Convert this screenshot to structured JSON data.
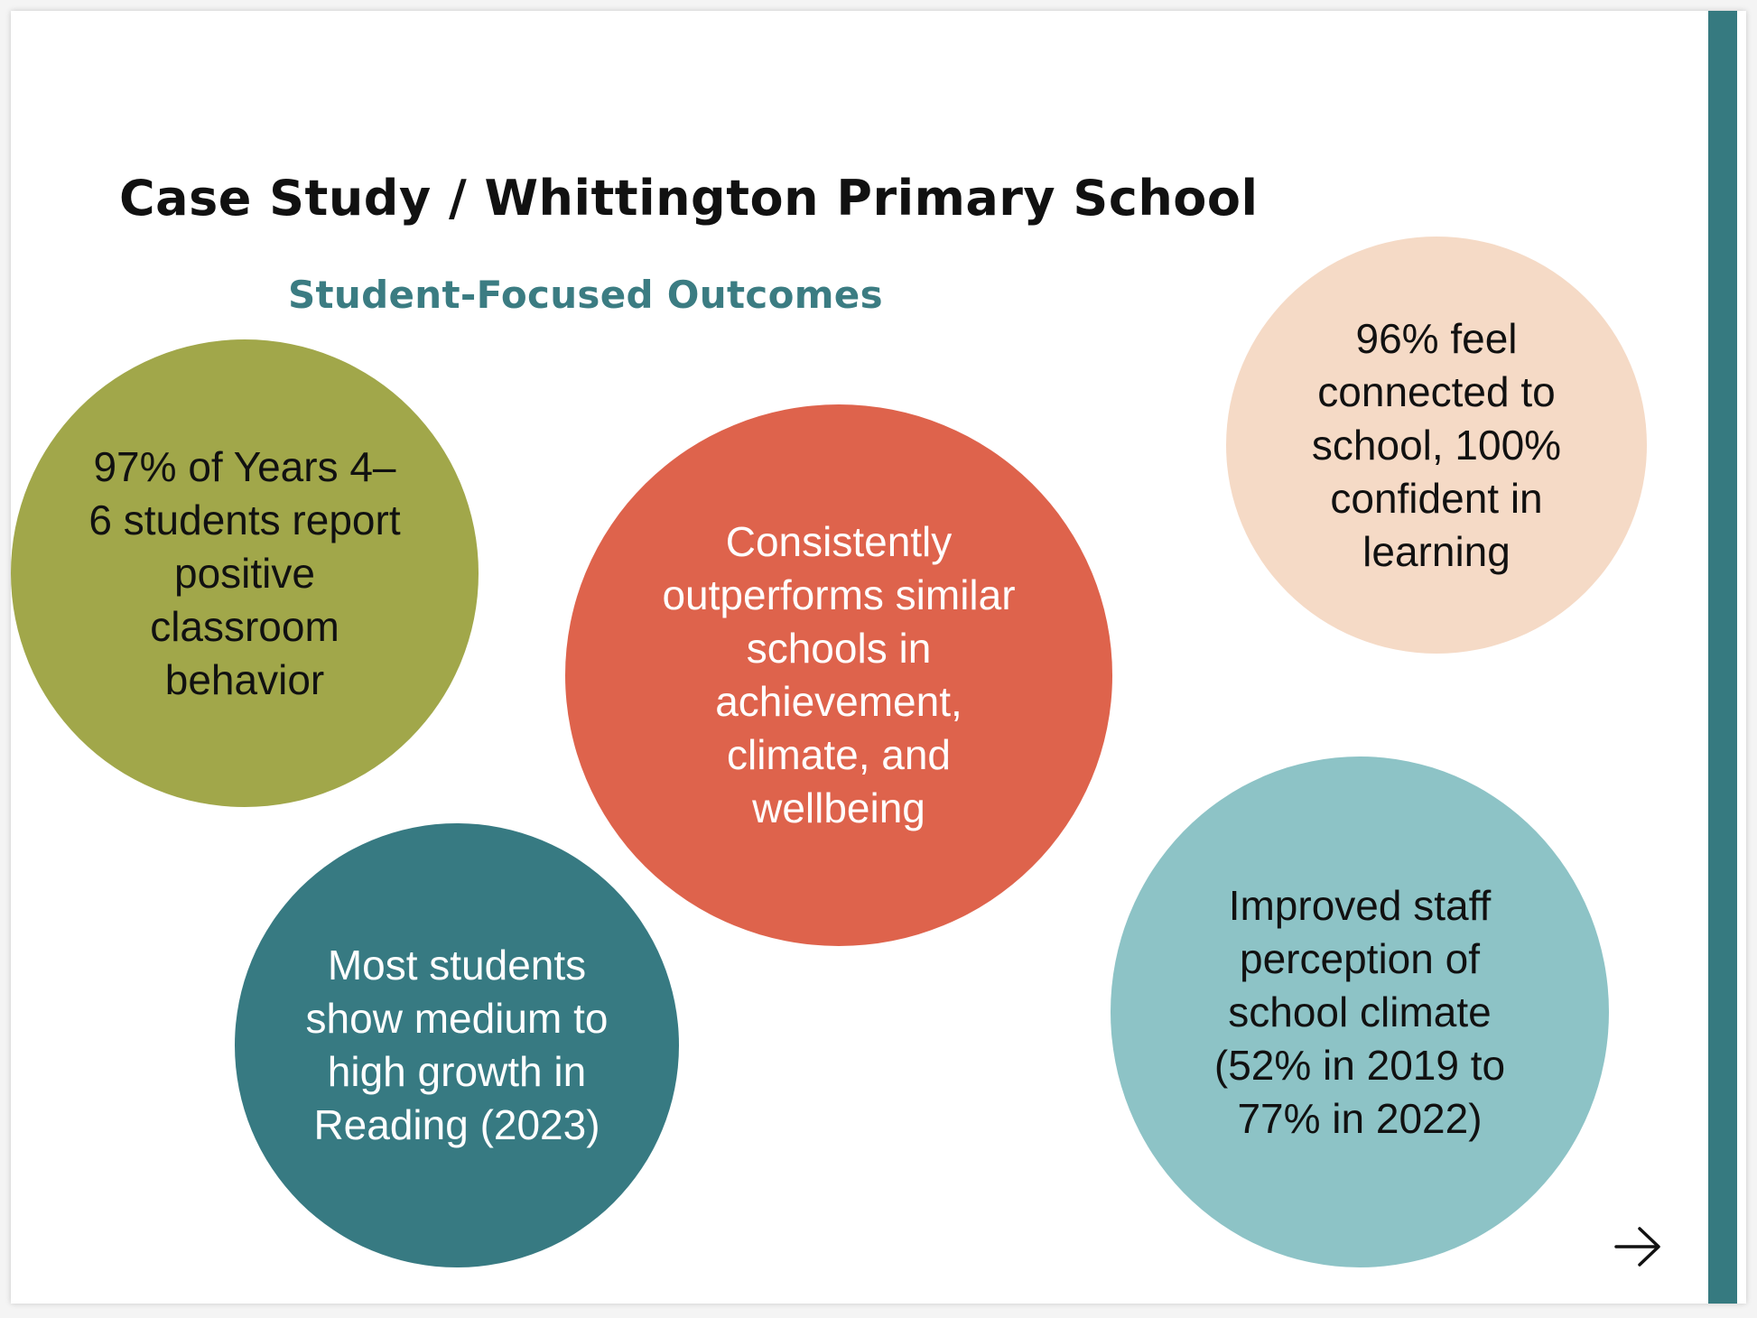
{
  "slide": {
    "title": "Case Study / Whittington Primary School",
    "subtitle": "Student-Focused Outcomes",
    "accent_color": "#367a80"
  },
  "bubbles": [
    {
      "text": "97% of Years 4–6 students report positive classroom behavior",
      "color": "#a1a74a"
    },
    {
      "text": "Consistently outperforms similar schools in achievement, climate, and wellbeing",
      "color": "#de634c"
    },
    {
      "text": "96% feel connected to school, 100% confident in learning",
      "color": "#f5dac6"
    },
    {
      "text": "Most students show medium to high growth in Reading (2023)",
      "color": "#377a82"
    },
    {
      "text": "Improved staff perception of school climate (52% in 2019 to 77% in 2022)",
      "color": "#8dc3c6"
    }
  ],
  "navigation": {
    "next_icon": "arrow-right-icon"
  }
}
